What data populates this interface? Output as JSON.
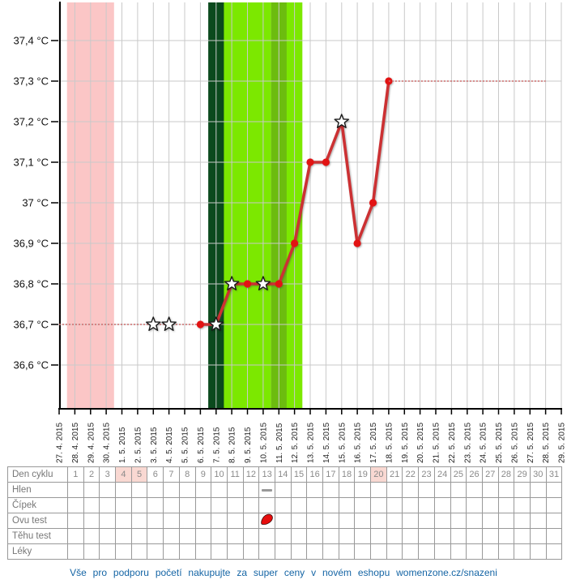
{
  "chart_data": {
    "type": "line",
    "title": "",
    "xlabel": "",
    "ylabel": "",
    "grid": true,
    "ylim": [
      36.5,
      37.5
    ],
    "y_ticks": [
      {
        "label": "37,4 °C",
        "value": 37.4
      },
      {
        "label": "37,3 °C",
        "value": 37.3
      },
      {
        "label": "37,2 °C",
        "value": 37.2
      },
      {
        "label": "37,1 °C",
        "value": 37.1
      },
      {
        "label": "37 °C",
        "value": 37.0
      },
      {
        "label": "36,9 °C",
        "value": 36.9
      },
      {
        "label": "36,8 °C",
        "value": 36.8
      },
      {
        "label": "36,7 °C",
        "value": 36.7
      },
      {
        "label": "36,6 °C",
        "value": 36.6
      }
    ],
    "x_labels": [
      "27. 4. 2015",
      "28. 4. 2015",
      "29. 4. 2015",
      "30. 4. 2015",
      "1. 5. 2015",
      "2. 5. 2015",
      "3. 5. 2015",
      "4. 5. 2015",
      "5. 5. 2015",
      "6. 5. 2015",
      "7. 5. 2015",
      "8. 5. 2015",
      "9. 5. 2015",
      "10. 5. 2015",
      "11. 5. 2015",
      "12. 5. 2015",
      "13. 5. 2015",
      "14. 5. 2015",
      "15. 5. 2015",
      "16. 5. 2015",
      "17. 5. 2015",
      "18. 5. 2015",
      "19. 5. 2015",
      "20. 5. 2015",
      "21. 5. 2015",
      "22. 5. 2015",
      "23. 5. 2015",
      "24. 5. 2015",
      "25. 5. 2015",
      "26. 5. 2015",
      "27. 5. 2015",
      "28. 5. 2015",
      "29. 5. 2015"
    ],
    "series": [
      {
        "name": "temperature-missing-early",
        "style": "dotted",
        "points": [
          {
            "day": 1,
            "temp": 36.7
          },
          {
            "day": 10,
            "temp": 36.7
          }
        ]
      },
      {
        "name": "temperature-measured",
        "style": "solid",
        "points": [
          {
            "day": 10,
            "temp": 36.7
          },
          {
            "day": 11,
            "temp": 36.7
          },
          {
            "day": 12,
            "temp": 36.8
          },
          {
            "day": 13,
            "temp": 36.8
          },
          {
            "day": 14,
            "temp": 36.8
          },
          {
            "day": 15,
            "temp": 36.8
          },
          {
            "day": 16,
            "temp": 36.9
          },
          {
            "day": 17,
            "temp": 37.1
          },
          {
            "day": 18,
            "temp": 37.1
          },
          {
            "day": 19,
            "temp": 37.2
          },
          {
            "day": 20,
            "temp": 36.9
          },
          {
            "day": 21,
            "temp": 37.0
          },
          {
            "day": 22,
            "temp": 37.3
          }
        ]
      },
      {
        "name": "temperature-missing-late",
        "style": "dotted",
        "points": [
          {
            "day": 22,
            "temp": 37.3
          },
          {
            "day": 32,
            "temp": 37.3
          }
        ]
      }
    ],
    "markers": {
      "dots": [
        {
          "day": 10,
          "temp": 36.7
        },
        {
          "day": 13,
          "temp": 36.8
        },
        {
          "day": 15,
          "temp": 36.8
        },
        {
          "day": 16,
          "temp": 36.9
        },
        {
          "day": 17,
          "temp": 37.1
        },
        {
          "day": 18,
          "temp": 37.1
        },
        {
          "day": 20,
          "temp": 36.9
        },
        {
          "day": 21,
          "temp": 37.0
        },
        {
          "day": 22,
          "temp": 37.3
        }
      ],
      "stars": [
        {
          "day": 7,
          "temp": 36.7
        },
        {
          "day": 8,
          "temp": 36.7
        },
        {
          "day": 11,
          "temp": 36.7
        },
        {
          "day": 12,
          "temp": 36.8
        },
        {
          "day": 14,
          "temp": 36.8
        },
        {
          "day": 19,
          "temp": 37.2
        }
      ]
    },
    "bands": [
      {
        "name": "menstruation",
        "from_day": 2,
        "to_day": 4,
        "color": "#fbc6c6"
      },
      {
        "name": "fertile-start",
        "from_day": 11,
        "to_day": 11,
        "color": "#0b4a1d"
      },
      {
        "name": "fertile",
        "from_day": 12,
        "to_day": 14,
        "color": "#7ce800"
      },
      {
        "name": "ovulation",
        "from_day": 15,
        "to_day": 15,
        "color": "#6cbc0f"
      },
      {
        "name": "fertile-end",
        "from_day": 16,
        "to_day": 16,
        "color": "#7ce800"
      }
    ]
  },
  "table": {
    "row_labels": [
      "Den cyklu",
      "Hlen",
      "Čípek",
      "Ovu test",
      "Těhu test",
      "Léky"
    ],
    "day_numbers": [
      "1",
      "2",
      "3",
      "4",
      "5",
      "6",
      "7",
      "8",
      "9",
      "10",
      "11",
      "12",
      "13",
      "14",
      "15",
      "16",
      "17",
      "18",
      "19",
      "20",
      "21",
      "22",
      "23",
      "24",
      "25",
      "26",
      "27",
      "28",
      "29",
      "30",
      "31"
    ],
    "highlighted_days": [
      4,
      5,
      20
    ],
    "cell_markers": [
      {
        "row_label": "Hlen",
        "day": 13,
        "marker": "gray-dash"
      },
      {
        "row_label": "Ovu test",
        "day": 13,
        "marker": "red-drop"
      }
    ]
  },
  "footer": {
    "text": "Vše pro podporu početí nakupujte za super ceny v novém eshopu womenzone.cz/snazeni"
  },
  "colors": {
    "line_red": "#cc3133",
    "dot_red": "#e21313",
    "dotted_red": "#cc6a6a",
    "grid": "#c9c9c9",
    "axis": "#000000",
    "x_label_text": "#222222",
    "y_label_text": "#111111",
    "table_border": "#999999",
    "table_text": "#8a8a8a",
    "table_highlight": "#f9d8d2",
    "marker_dash_gray": "#999999",
    "footer_blue": "#1565a5"
  }
}
